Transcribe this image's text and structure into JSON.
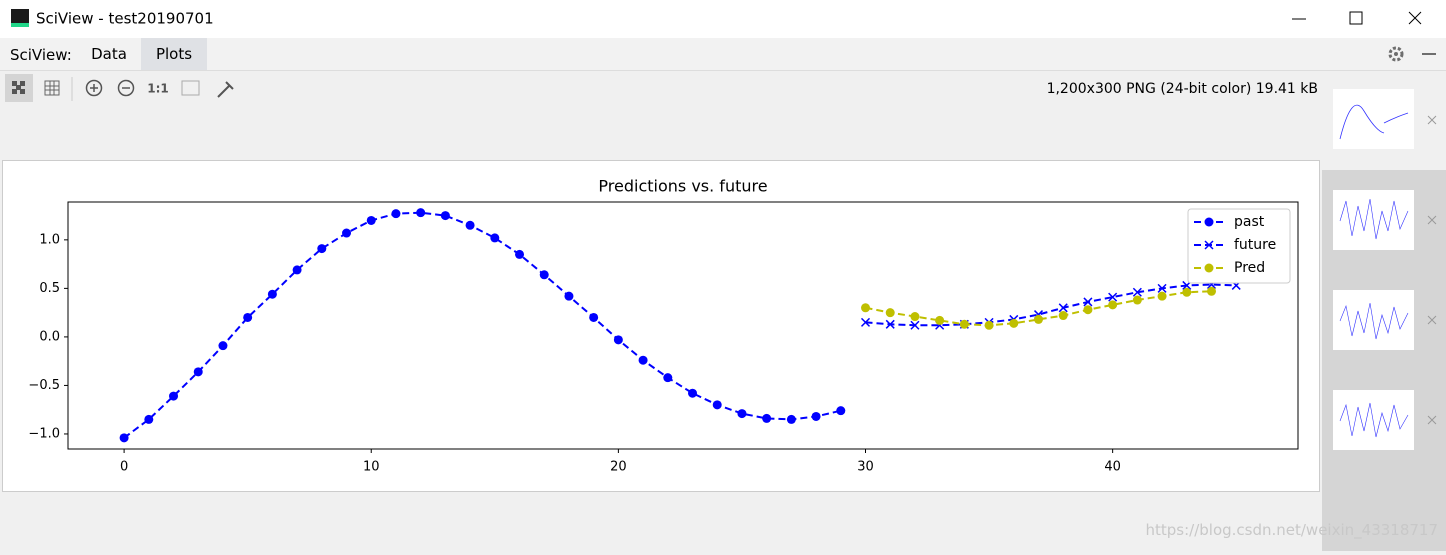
{
  "window": {
    "title": "SciView - test20190701"
  },
  "menu": {
    "label": "SciView:",
    "tabs": [
      "Data",
      "Plots"
    ]
  },
  "toolbar": {
    "zoom_label": "1:1",
    "image_info": "1,200x300 PNG (24-bit color) 19.41 kB"
  },
  "watermark": "https://blog.csdn.net/weixin_43318717",
  "chart_data": {
    "type": "line",
    "title": "Predictions vs. future",
    "xlim": [
      -2.27,
      47.5
    ],
    "ylim": [
      -1.155,
      1.39
    ],
    "xticks": [
      0,
      10,
      20,
      30,
      40
    ],
    "yticks": [
      {
        "value": -1.0,
        "label": "−1.0"
      },
      {
        "value": -0.5,
        "label": "−0.5"
      },
      {
        "value": 0.0,
        "label": "0.0"
      },
      0.5,
      {
        "value": 1.0,
        "label": "1.0"
      }
    ],
    "grid": false,
    "legend": "upper right",
    "series": [
      {
        "name": "past",
        "color": "#0000ff",
        "marker": "o",
        "linestyle": "dashed",
        "x": [
          0,
          1,
          2,
          3,
          4,
          5,
          6,
          7,
          8,
          9,
          10,
          11,
          12,
          13,
          14,
          15,
          16,
          17,
          18,
          19,
          20,
          21,
          22,
          23,
          24,
          25,
          26,
          27,
          28,
          29
        ],
        "values": [
          -1.04,
          -0.85,
          -0.61,
          -0.36,
          -0.09,
          0.2,
          0.44,
          0.69,
          0.91,
          1.07,
          1.2,
          1.27,
          1.28,
          1.25,
          1.15,
          1.02,
          0.85,
          0.64,
          0.42,
          0.2,
          -0.03,
          -0.24,
          -0.42,
          -0.58,
          -0.7,
          -0.79,
          -0.84,
          -0.85,
          -0.82,
          -0.76
        ]
      },
      {
        "name": "future",
        "color": "#0000ff",
        "marker": "x",
        "linestyle": "dashed",
        "x": [
          30,
          31,
          32,
          33,
          34,
          35,
          36,
          37,
          38,
          39,
          40,
          41,
          42,
          43,
          44,
          45
        ],
        "values": [
          0.15,
          0.13,
          0.12,
          0.12,
          0.13,
          0.15,
          0.18,
          0.23,
          0.3,
          0.36,
          0.41,
          0.46,
          0.5,
          0.53,
          0.54,
          0.53
        ]
      },
      {
        "name": "Pred",
        "color": "#bfbf00",
        "marker": "o",
        "linestyle": "dashed",
        "x": [
          30,
          31,
          32,
          33,
          34,
          35,
          36,
          37,
          38,
          39,
          40,
          41,
          42,
          43,
          44
        ],
        "values": [
          0.3,
          0.25,
          0.21,
          0.17,
          0.13,
          0.12,
          0.14,
          0.18,
          0.22,
          0.28,
          0.33,
          0.38,
          0.42,
          0.46,
          0.47
        ]
      }
    ]
  }
}
